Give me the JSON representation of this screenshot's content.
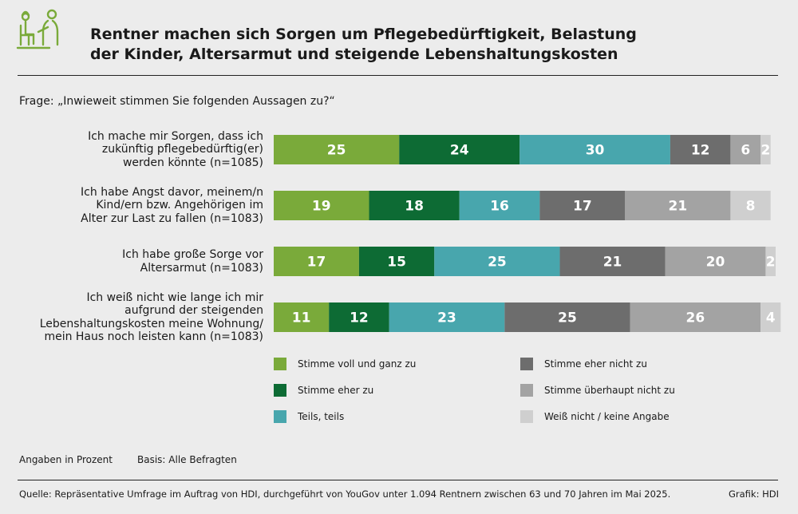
{
  "header": {
    "title_line1": "Rentner machen sich Sorgen um Pflegebedürftigkeit, Belastung",
    "title_line2": "der Kinder, Altersarmut und steigende Lebenshaltungskosten",
    "icon": "caregiver-icon"
  },
  "question": "Frage: „Inwieweit stimmen Sie folgenden Aussagen zu?“",
  "chart_data": {
    "type": "bar",
    "orientation": "horizontal",
    "stacked": true,
    "unit": "%",
    "categories": [
      "Ich mache mir Sorgen, dass ich\nzukünftig pflegebedürftig(er)\nwerden könnte (n=1085)",
      "Ich habe Angst davor, meinem/n\nKind/ern bzw. Angehörigen im\nAlter zur Last zu fallen (n=1083)",
      "Ich habe große Sorge vor\nAltersarmut (n=1083)",
      "Ich weiß nicht wie lange ich mir\naufgrund der steigenden\nLebenshaltungskosten meine Wohnung/\nmein Haus noch leisten kann (n=1083)"
    ],
    "series": [
      {
        "name": "Stimme voll und ganz zu",
        "color": "#7aaa3a",
        "values": [
          25,
          19,
          17,
          11
        ]
      },
      {
        "name": "Stimme eher zu",
        "color": "#0d6b34",
        "values": [
          24,
          18,
          15,
          12
        ]
      },
      {
        "name": "Teils, teils",
        "color": "#48a6ad",
        "values": [
          30,
          16,
          25,
          23
        ]
      },
      {
        "name": "Stimme eher nicht zu",
        "color": "#6d6d6d",
        "values": [
          12,
          17,
          21,
          25
        ]
      },
      {
        "name": "Stimme überhaupt nicht zu",
        "color": "#a3a3a3",
        "values": [
          6,
          21,
          20,
          26
        ]
      },
      {
        "name": "Weiß nicht / keine Angabe",
        "color": "#cfcfcf",
        "values": [
          2,
          8,
          2,
          4
        ]
      }
    ],
    "legend_position": "bottom"
  },
  "footer": {
    "note_unit": "Angaben in Prozent",
    "note_basis": "Basis: Alle Befragten",
    "source": "Quelle: Repräsentative Umfrage im Auftrag von HDI, durchgeführt von YouGov unter 1.094 Rentnern zwischen 63 und 70 Jahren im Mai 2025.",
    "credit": "Grafik: HDI"
  }
}
